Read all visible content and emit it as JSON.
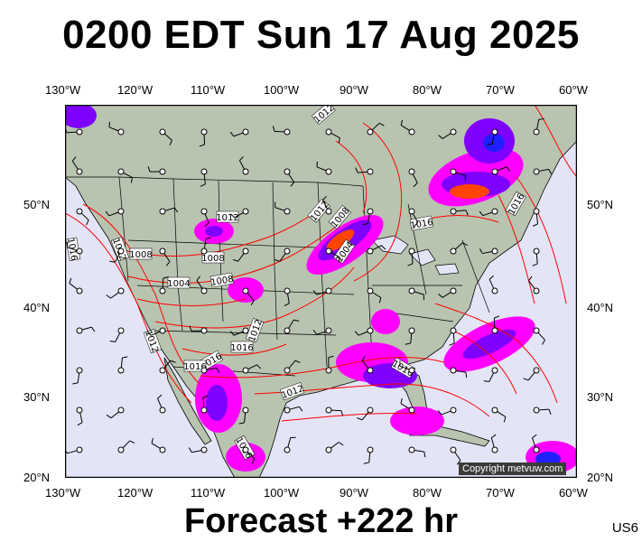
{
  "title": "0200 EDT Sun 17 Aug 2025",
  "subtitle": "Forecast +222 hr",
  "region_code": "US6",
  "copyright": "Copyright metvuw.com",
  "colors": {
    "ocean": "#e4e4f7",
    "land": "#b8c4b0",
    "isobar": "#ff0000",
    "border": "#000000",
    "precip_light": "#ff00ff",
    "precip_mid": "#8000ff",
    "precip_heavy": "#2020ff",
    "precip_extreme": "#ff4400"
  },
  "axes": {
    "top_lon": [
      "130°W",
      "120°W",
      "110°W",
      "100°W",
      "90°W",
      "80°W",
      "70°W",
      "60°W"
    ],
    "bottom_lon": [
      "130°W",
      "120°W",
      "110°W",
      "100°W",
      "90°W",
      "80°W",
      "70°W",
      "60°W"
    ],
    "left_lat": [
      "50°N",
      "40°N",
      "30°N",
      "20°N"
    ],
    "right_lat": [
      "50°N",
      "40°N",
      "30°N",
      "20°N"
    ]
  },
  "isobar_labels": [
    "1012",
    "1016",
    "1012",
    "1008",
    "1004",
    "1008",
    "1012",
    "1016",
    "1004",
    "1008",
    "1008",
    "1012",
    "1016",
    "1012",
    "1016",
    "1016",
    "1016",
    "1016",
    "1012",
    "1012",
    "1016",
    "1016"
  ]
}
